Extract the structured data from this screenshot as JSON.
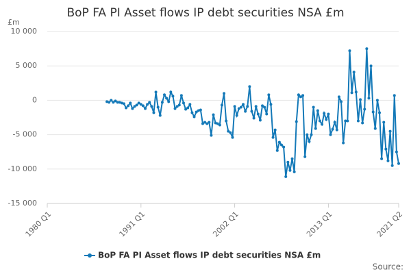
{
  "chart_data": {
    "type": "line",
    "title": "BoP FA PI Asset flows IP debt securities NSA £m",
    "y_unit": "£m",
    "source": "Source:",
    "categories": [
      "1980 Q1",
      null,
      null,
      null,
      null,
      null,
      null,
      null,
      null,
      null,
      null,
      null,
      null,
      null,
      null,
      null,
      null,
      null,
      null,
      null,
      null,
      null,
      null,
      null,
      null,
      null,
      null,
      null,
      null,
      null,
      null,
      null,
      null,
      null,
      null,
      null,
      null,
      null,
      null,
      null,
      null,
      null,
      null,
      null,
      "1991 Q1",
      null,
      null,
      null,
      null,
      null,
      null,
      null,
      null,
      null,
      null,
      null,
      null,
      null,
      null,
      null,
      null,
      null,
      null,
      null,
      null,
      null,
      null,
      null,
      null,
      null,
      null,
      null,
      null,
      null,
      null,
      null,
      null,
      null,
      null,
      null,
      null,
      null,
      null,
      null,
      null,
      null,
      null,
      null,
      "2002 Q1",
      null,
      null,
      null,
      null,
      null,
      null,
      null,
      null,
      null,
      null,
      null,
      null,
      null,
      null,
      null,
      null,
      null,
      null,
      null,
      null,
      null,
      null,
      null,
      null,
      null,
      null,
      null,
      null,
      null,
      null,
      null,
      null,
      null,
      null,
      null,
      null,
      null,
      null,
      null,
      null,
      null,
      null,
      null,
      "2013 Q1",
      null,
      null,
      null,
      null,
      null,
      null,
      null,
      null,
      null,
      null,
      null,
      null,
      null,
      null,
      null,
      null,
      null,
      null,
      null,
      null,
      null,
      null,
      null,
      null,
      null,
      null,
      null,
      null,
      null,
      null,
      null,
      null,
      "2021 Q2"
    ],
    "series": [
      {
        "name": "BoP FA PI Asset flows IP debt securities NSA £m",
        "color": "#1479b8",
        "values": [
          null,
          null,
          null,
          null,
          null,
          null,
          null,
          null,
          null,
          null,
          null,
          null,
          null,
          null,
          null,
          null,
          null,
          null,
          null,
          null,
          null,
          null,
          null,
          null,
          null,
          null,
          null,
          null,
          -200,
          -300,
          0,
          -300,
          -100,
          -300,
          -300,
          -400,
          -500,
          -1100,
          -800,
          -400,
          -1200,
          -900,
          -700,
          -400,
          -600,
          -800,
          -1200,
          -600,
          -300,
          -900,
          -1800,
          1200,
          -1000,
          -2200,
          -300,
          800,
          300,
          -200,
          1200,
          600,
          -1200,
          -900,
          -700,
          700,
          -400,
          -1300,
          -1100,
          -600,
          -1800,
          -2400,
          -1700,
          -1500,
          -1400,
          -3400,
          -3200,
          -3400,
          -3200,
          -5100,
          -2100,
          -3300,
          -3400,
          -3600,
          -700,
          1000,
          -3000,
          -4500,
          -4700,
          -5400,
          -900,
          -2200,
          -1200,
          -1000,
          -600,
          -1600,
          -900,
          2000,
          -1600,
          -2600,
          -900,
          -2000,
          -2900,
          -800,
          -1000,
          -2000,
          800,
          -600,
          -5400,
          -4300,
          -7300,
          -6100,
          -6500,
          -6800,
          -11100,
          -9000,
          -10200,
          -8500,
          -10400,
          -3100,
          800,
          500,
          700,
          -8200,
          -5000,
          -6000,
          -5000,
          -1000,
          -4100,
          -1500,
          -3000,
          -3500,
          -1900,
          -2800,
          -2000,
          -5000,
          -4200,
          -3200,
          -4300,
          500,
          -200,
          -6200,
          -3000,
          -3000,
          7200,
          1100,
          4100,
          1200,
          -3000,
          100,
          -3300,
          -1300,
          7500,
          300,
          5000,
          -1700,
          -4100,
          0,
          -1800,
          -8500,
          -3200,
          -7100,
          -8800,
          -4500,
          -9500,
          700,
          -7500,
          -9200
        ]
      }
    ],
    "ylim": [
      -15000,
      10000
    ],
    "yticks": [
      {
        "value": -15000,
        "label": "-15 000"
      },
      {
        "value": -10000,
        "label": "-10 000"
      },
      {
        "value": -5000,
        "label": "-5 000"
      },
      0,
      {
        "value": 5000,
        "label": "5 000"
      },
      {
        "value": 10000,
        "label": "10 000"
      }
    ],
    "grid": true
  }
}
